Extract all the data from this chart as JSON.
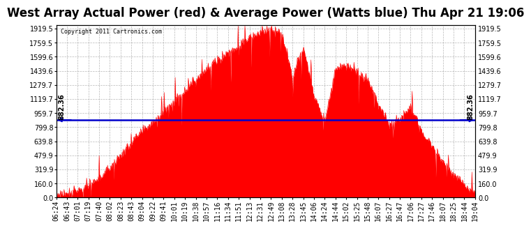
{
  "title": "West Array Actual Power (red) & Average Power (Watts blue) Thu Apr 21 19:06",
  "copyright_text": "Copyright 2011 Cartronics.com",
  "average_power": 882.36,
  "y_ticks": [
    0.0,
    160.0,
    319.9,
    479.9,
    639.8,
    799.8,
    959.7,
    1119.7,
    1279.7,
    1439.6,
    1599.6,
    1759.5,
    1919.5
  ],
  "y_max": 1960,
  "x_labels": [
    "06:24",
    "06:43",
    "07:01",
    "07:19",
    "07:40",
    "08:02",
    "08:23",
    "08:43",
    "09:04",
    "09:22",
    "09:41",
    "10:01",
    "10:19",
    "10:38",
    "10:57",
    "11:16",
    "11:34",
    "11:51",
    "12:13",
    "12:31",
    "12:49",
    "13:08",
    "13:28",
    "13:45",
    "14:06",
    "14:24",
    "14:44",
    "15:02",
    "15:25",
    "15:48",
    "16:07",
    "16:27",
    "16:47",
    "17:06",
    "17:27",
    "17:46",
    "18:07",
    "18:25",
    "18:44",
    "19:04"
  ],
  "power_values": [
    30,
    60,
    90,
    130,
    220,
    350,
    480,
    620,
    750,
    860,
    980,
    1100,
    1220,
    1350,
    1460,
    1560,
    1650,
    1720,
    1820,
    1870,
    1920,
    1860,
    1380,
    1720,
    1150,
    870,
    1460,
    1520,
    1430,
    1330,
    1060,
    830,
    900,
    1030,
    760,
    590,
    410,
    270,
    130,
    50
  ],
  "bg_color": "#ffffff",
  "fill_color": "#ff0000",
  "line_color": "#0000cc",
  "grid_color": "#888888",
  "title_fontsize": 12,
  "tick_fontsize": 7,
  "label_882_fontsize": 7
}
